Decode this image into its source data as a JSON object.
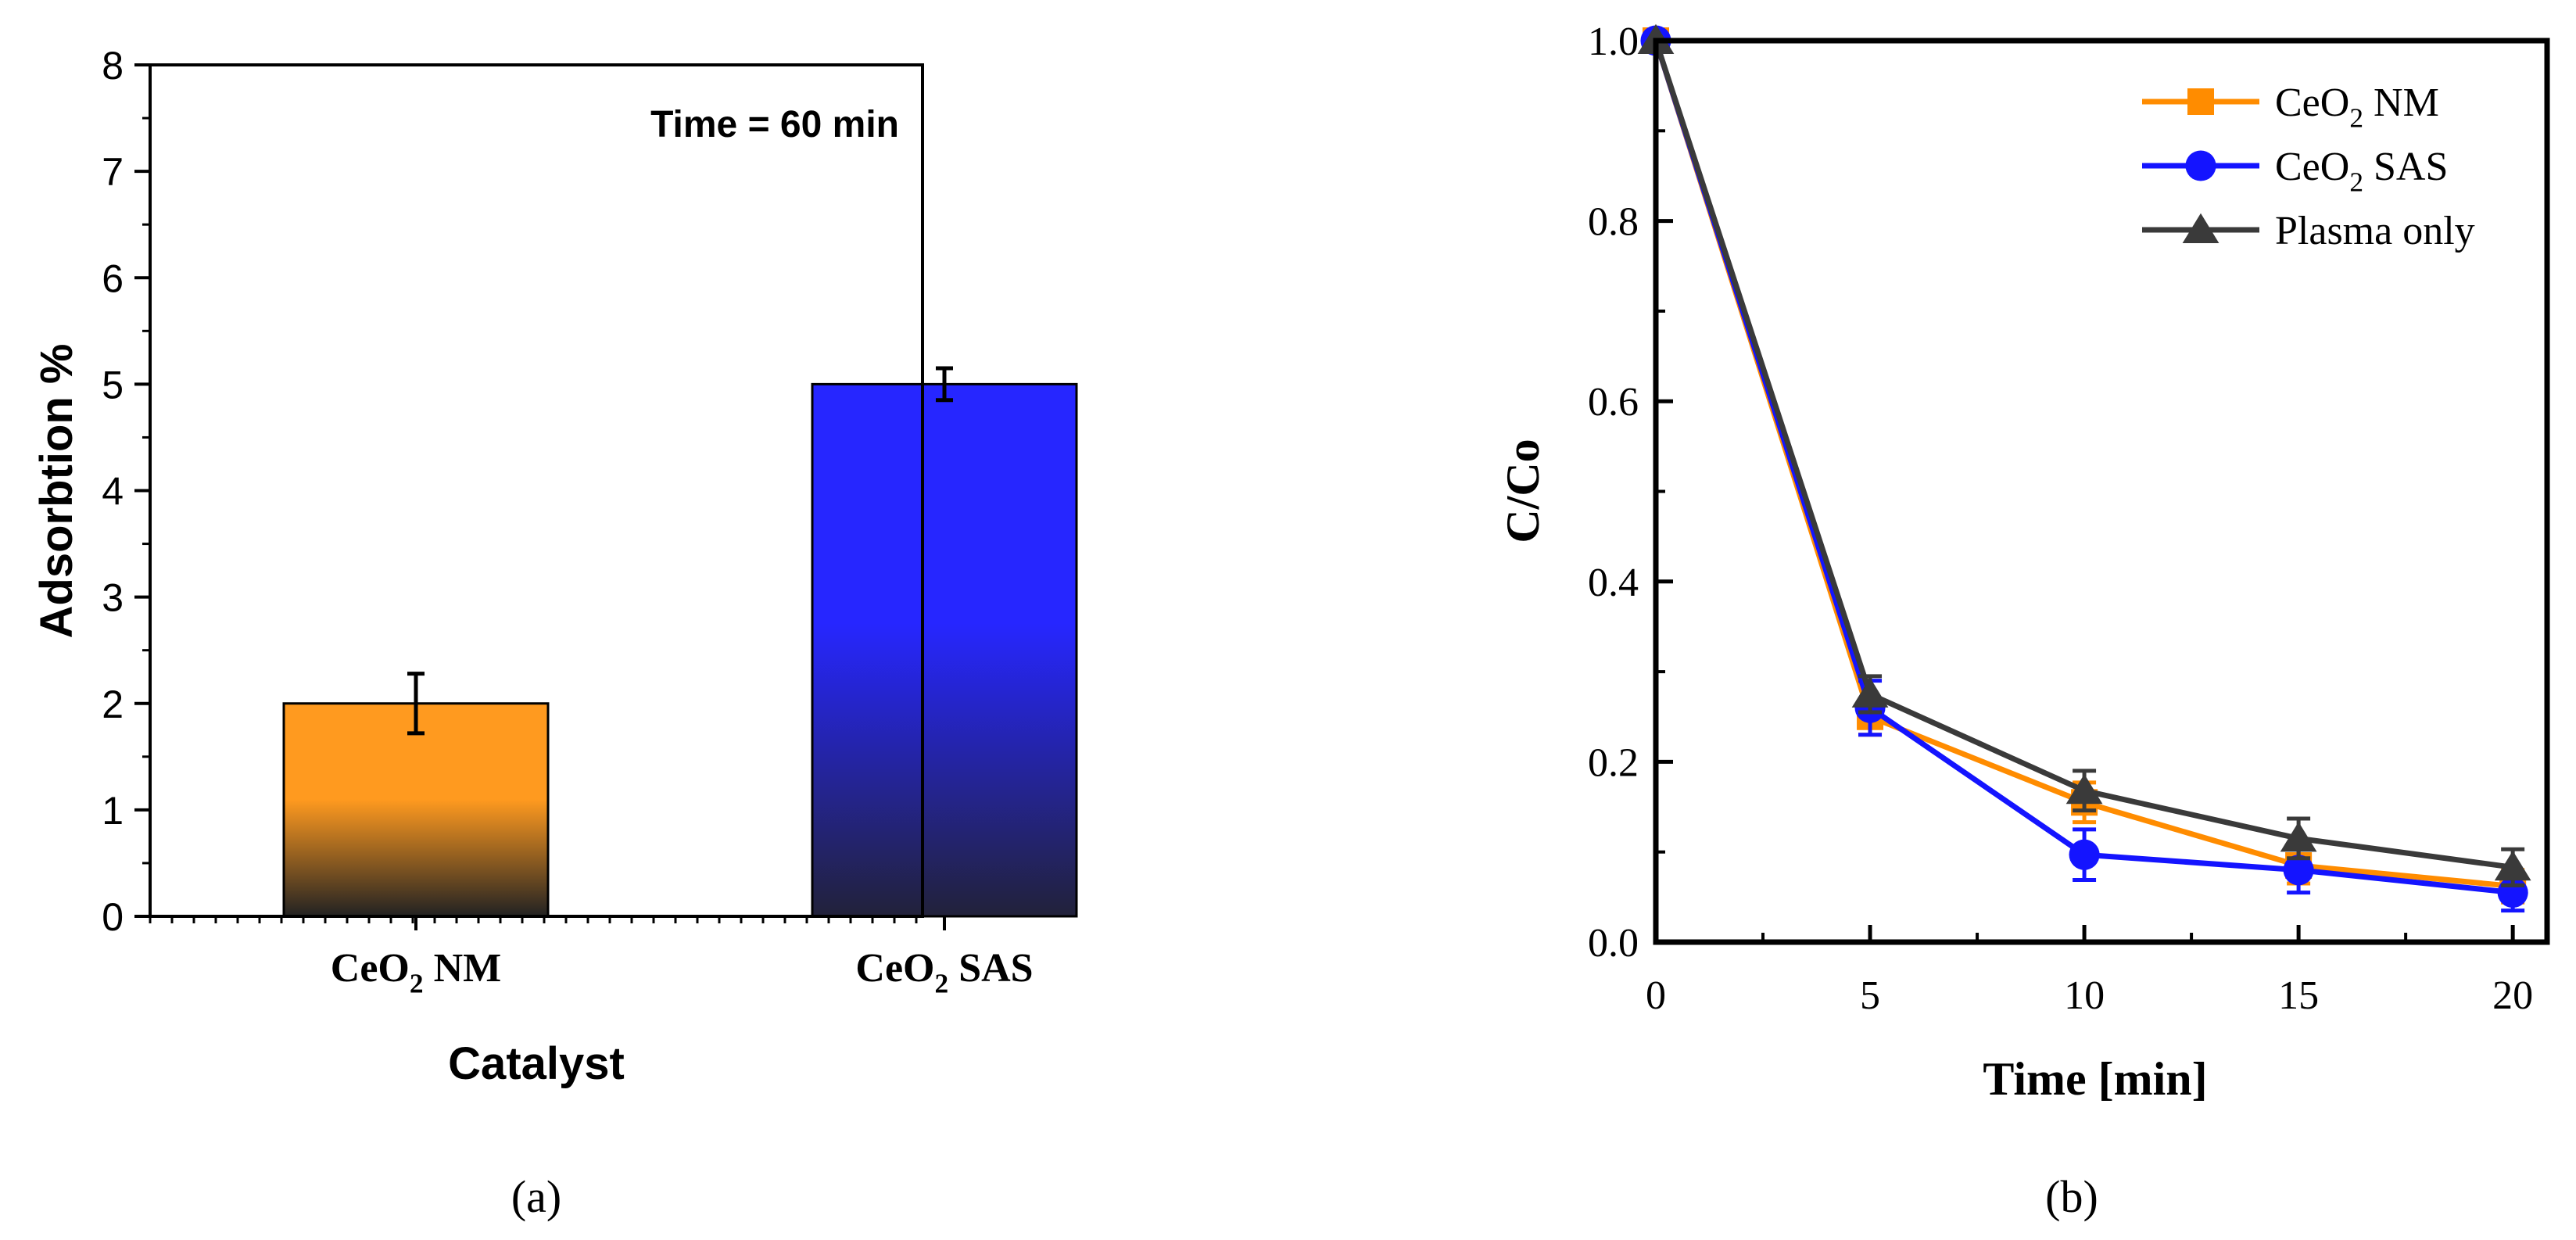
{
  "panel_labels": {
    "a": "(a)",
    "b": "(b)"
  },
  "chart_data": [
    {
      "type": "bar",
      "categories": [
        "CeO2 NM",
        "CeO2 SAS"
      ],
      "category_labels": [
        {
          "base": "CeO",
          "sub": "2",
          "rest": " NM"
        },
        {
          "base": "CeO",
          "sub": "2",
          "rest": " SAS"
        }
      ],
      "values": [
        2.0,
        5.0
      ],
      "errors": [
        0.28,
        0.15
      ],
      "colors": [
        {
          "top": "#ff9a1f",
          "bottom": "#222222"
        },
        {
          "top": "#2626ff",
          "bottom": "#22223a"
        }
      ],
      "xlabel": "Catalyst",
      "ylabel": "Adsorbtion %",
      "ylim": [
        0,
        8
      ],
      "yticks": [
        "0",
        "1",
        "2",
        "3",
        "4",
        "5",
        "6",
        "7",
        "8"
      ],
      "annotation": "Time = 60 min",
      "grid": false
    },
    {
      "type": "line",
      "x": [
        0,
        5,
        10,
        15,
        20
      ],
      "xticks": [
        "0",
        "5",
        "10",
        "15",
        "20"
      ],
      "yticks": [
        "0.0",
        "0.2",
        "0.4",
        "0.6",
        "0.8",
        "1.0"
      ],
      "xlim": [
        0,
        20.8
      ],
      "ylim": [
        0,
        1.0
      ],
      "xlabel": "Time [min]",
      "ylabel": "C/Co",
      "legend_position": "top-right",
      "grid": false,
      "series": [
        {
          "name": "CeO2 NM",
          "legend": {
            "base": "CeO",
            "sub": "2",
            "rest": " NM"
          },
          "marker": "square",
          "color": "#ff8c00",
          "values": [
            1.0,
            0.25,
            0.155,
            0.085,
            0.062
          ],
          "errors": [
            0.0,
            0.02,
            0.022,
            0.02,
            0.018
          ]
        },
        {
          "name": "CeO2 SAS",
          "legend": {
            "base": "CeO",
            "sub": "2",
            "rest": " SAS"
          },
          "marker": "circle",
          "color": "#1414ff",
          "values": [
            1.0,
            0.26,
            0.097,
            0.08,
            0.055
          ],
          "errors": [
            0.0,
            0.03,
            0.028,
            0.025,
            0.02
          ]
        },
        {
          "name": "Plasma only",
          "legend": {
            "base": "Plasma only",
            "sub": "",
            "rest": ""
          },
          "marker": "triangle",
          "color": "#3a3a3a",
          "values": [
            1.0,
            0.275,
            0.168,
            0.115,
            0.083
          ],
          "errors": [
            0.0,
            0.02,
            0.022,
            0.022,
            0.02
          ]
        }
      ]
    }
  ]
}
